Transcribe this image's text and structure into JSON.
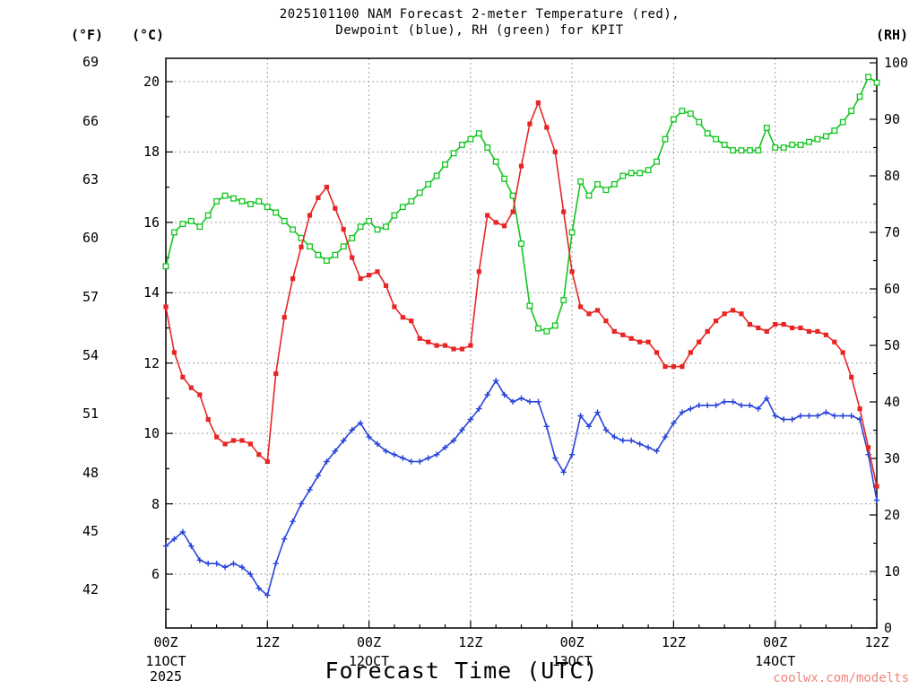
{
  "title": {
    "line1": "2025101100 NAM Forecast 2-meter Temperature (red),",
    "line2": "Dewpoint (blue), RH (green) for KPIT"
  },
  "axes": {
    "left_outer_unit": "(°F)",
    "left_inner_unit": "(°C)",
    "right_unit": "(RH)",
    "fahrenheit_ticks": [
      69,
      66,
      63,
      60,
      57,
      54,
      51,
      48,
      45,
      42
    ],
    "celsius_ticks": [
      20,
      18,
      16,
      14,
      12,
      10,
      8,
      6
    ],
    "rh_ticks": [
      100,
      90,
      80,
      70,
      60,
      50,
      40,
      30,
      20,
      10,
      0
    ],
    "x_ticks": [
      {
        "hour": 0,
        "label": "00Z"
      },
      {
        "hour": 12,
        "label": "12Z"
      },
      {
        "hour": 24,
        "label": "00Z"
      },
      {
        "hour": 36,
        "label": "12Z"
      },
      {
        "hour": 48,
        "label": "00Z"
      },
      {
        "hour": 60,
        "label": "12Z"
      },
      {
        "hour": 72,
        "label": "00Z"
      },
      {
        "hour": 84,
        "label": "12Z"
      }
    ],
    "date_labels": [
      {
        "hour": 0,
        "text": "11OCT",
        "sub": "2025"
      },
      {
        "hour": 24,
        "text": "12OCT"
      },
      {
        "hour": 48,
        "text": "13OCT"
      },
      {
        "hour": 72,
        "text": "14OCT"
      }
    ],
    "x_axis_title": "Forecast Time (UTC)"
  },
  "watermark": {
    "text": "coolwx.com/modelts"
  },
  "colors": {
    "temperature": "#e82525",
    "dewpoint": "#2743d9",
    "rh": "#12c51f",
    "grid": "#a0a0a0",
    "frame": "#000000",
    "watermark": "#f4837b"
  },
  "chart_data": {
    "type": "line",
    "title": "2025101100 NAM Forecast 2-meter Temperature (red), Dewpoint (blue), RH (green) for KPIT",
    "station": "KPIT",
    "model_run": "2025101100 NAM",
    "xlabel": "Forecast Time (UTC)",
    "x_start": "2025-10-11 00Z",
    "x_end": "2025-10-14 12Z",
    "x_interval_hours": 1,
    "grid": true,
    "left_axis": {
      "unit": "°C",
      "tick_labels": [
        20,
        18,
        16,
        14,
        12,
        10,
        8,
        6
      ],
      "fahrenheit_labels": [
        69,
        66,
        63,
        60,
        57,
        54,
        51,
        48,
        45,
        42
      ]
    },
    "right_axis": {
      "unit": "% RH",
      "range": [
        0,
        100
      ]
    },
    "series": [
      {
        "id": "temperature",
        "name": "2-meter Temperature (red)",
        "unit": "°C",
        "axis": "celsius",
        "marker": "square-filled",
        "color": "#e82525",
        "values": [
          13.6,
          12.3,
          11.6,
          11.3,
          11.1,
          10.4,
          9.9,
          9.7,
          9.8,
          9.8,
          9.7,
          9.4,
          9.2,
          11.7,
          13.3,
          14.4,
          15.3,
          16.2,
          16.7,
          17.0,
          16.4,
          15.8,
          15.0,
          14.4,
          14.5,
          14.6,
          14.2,
          13.6,
          13.3,
          13.2,
          12.7,
          12.6,
          12.5,
          12.5,
          12.4,
          12.4,
          12.5,
          14.6,
          16.2,
          16.0,
          15.9,
          16.3,
          17.6,
          18.8,
          19.4,
          18.7,
          18.0,
          16.3,
          14.6,
          13.6,
          13.4,
          13.5,
          13.2,
          12.9,
          12.8,
          12.7,
          12.6,
          12.6,
          12.3,
          11.9,
          11.9,
          11.9,
          12.3,
          12.6,
          12.9,
          13.2,
          13.4,
          13.5,
          13.4,
          13.1,
          13.0,
          12.9,
          13.1,
          13.1,
          13.0,
          13.0,
          12.9,
          12.9,
          12.8,
          12.6,
          12.3,
          11.6,
          10.7,
          9.6,
          8.5
        ]
      },
      {
        "id": "dewpoint",
        "name": "Dewpoint (blue)",
        "unit": "°C",
        "axis": "celsius",
        "marker": "plus",
        "color": "#2743d9",
        "values": [
          6.8,
          7.0,
          7.2,
          6.8,
          6.4,
          6.3,
          6.3,
          6.2,
          6.3,
          6.2,
          6.0,
          5.6,
          5.4,
          6.3,
          7.0,
          7.5,
          8.0,
          8.4,
          8.8,
          9.2,
          9.5,
          9.8,
          10.1,
          10.3,
          9.9,
          9.7,
          9.5,
          9.4,
          9.3,
          9.2,
          9.2,
          9.3,
          9.4,
          9.6,
          9.8,
          10.1,
          10.4,
          10.7,
          11.1,
          11.5,
          11.1,
          10.9,
          11.0,
          10.9,
          10.9,
          10.2,
          9.3,
          8.9,
          9.4,
          10.5,
          10.2,
          10.6,
          10.1,
          9.9,
          9.8,
          9.8,
          9.7,
          9.6,
          9.5,
          9.9,
          10.3,
          10.6,
          10.7,
          10.8,
          10.8,
          10.8,
          10.9,
          10.9,
          10.8,
          10.8,
          10.7,
          11.0,
          10.5,
          10.4,
          10.4,
          10.5,
          10.5,
          10.5,
          10.6,
          10.5,
          10.5,
          10.5,
          10.4,
          9.4,
          8.1
        ]
      },
      {
        "id": "rh",
        "name": "RH (green)",
        "unit": "%",
        "axis": "rh",
        "marker": "square-open",
        "color": "#12c51f",
        "values": [
          64,
          70,
          71.5,
          72,
          71,
          73,
          75.5,
          76.5,
          76,
          75.5,
          75,
          75.5,
          74.5,
          73.5,
          72,
          70.5,
          69,
          67.5,
          66,
          65,
          66,
          67.5,
          69,
          71,
          72,
          70.5,
          71,
          73,
          74.5,
          75.5,
          77,
          78.5,
          80,
          82,
          84,
          85.5,
          86.5,
          87.5,
          85,
          82.5,
          79.5,
          76.5,
          68,
          57,
          53,
          52.5,
          53.5,
          58,
          70,
          79,
          76.5,
          78.5,
          77.5,
          78.5,
          80,
          80.5,
          80.5,
          81,
          82.5,
          86.5,
          90,
          91.5,
          91,
          89.5,
          87.5,
          86.5,
          85.5,
          84.5,
          84.5,
          84.5,
          84.5,
          88.5,
          85,
          85,
          85.5,
          85.5,
          86,
          86.5,
          87,
          88,
          89.5,
          91.5,
          94,
          97.5,
          96.5
        ]
      }
    ]
  }
}
